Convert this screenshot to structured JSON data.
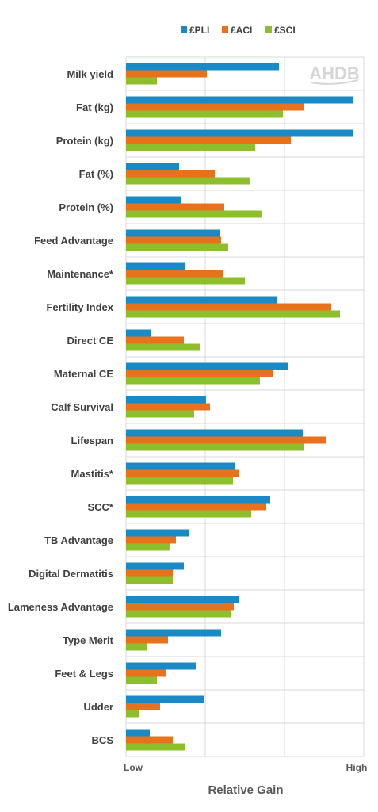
{
  "logo_text": "AHDB",
  "chart_data": {
    "type": "bar",
    "orientation": "horizontal",
    "title": "",
    "xlabel": "Relative Gain",
    "ylabel": "",
    "x_tick_labels": [
      "Low",
      "High"
    ],
    "xlim": [
      0,
      3
    ],
    "grid": true,
    "legend_position": "top",
    "categories": [
      "Milk yield",
      "Fat (kg)",
      "Protein (kg)",
      "Fat (%)",
      "Protein (%)",
      "Feed Advantage",
      "Maintenance*",
      "Fertility Index",
      "Direct CE",
      "Maternal CE",
      "Calf Survival",
      "Lifespan",
      "Mastitis*",
      "SCC*",
      "TB Advantage",
      "Digital Dermatitis",
      "Lameness Advantage",
      "Type Merit",
      "Feet & Legs",
      "Udder",
      "BCS"
    ],
    "series": [
      {
        "name": "£PLI",
        "color": "#1a8ac6",
        "values": [
          1.93,
          2.87,
          2.87,
          0.67,
          0.7,
          1.18,
          0.74,
          1.9,
          0.31,
          2.05,
          1.01,
          2.23,
          1.37,
          1.82,
          0.8,
          0.73,
          1.43,
          1.2,
          0.88,
          0.98,
          0.3
        ]
      },
      {
        "name": "£ACI",
        "color": "#e8711c",
        "values": [
          1.02,
          2.25,
          2.08,
          1.12,
          1.24,
          1.2,
          1.23,
          2.59,
          0.73,
          1.86,
          1.06,
          2.52,
          1.43,
          1.77,
          0.63,
          0.59,
          1.36,
          0.53,
          0.5,
          0.43,
          0.59
        ]
      },
      {
        "name": "£SCI",
        "color": "#8dbe2c",
        "values": [
          0.39,
          1.98,
          1.63,
          1.56,
          1.71,
          1.29,
          1.5,
          2.7,
          0.93,
          1.69,
          0.86,
          2.24,
          1.35,
          1.58,
          0.55,
          0.59,
          1.32,
          0.27,
          0.39,
          0.16,
          0.74
        ]
      }
    ]
  }
}
